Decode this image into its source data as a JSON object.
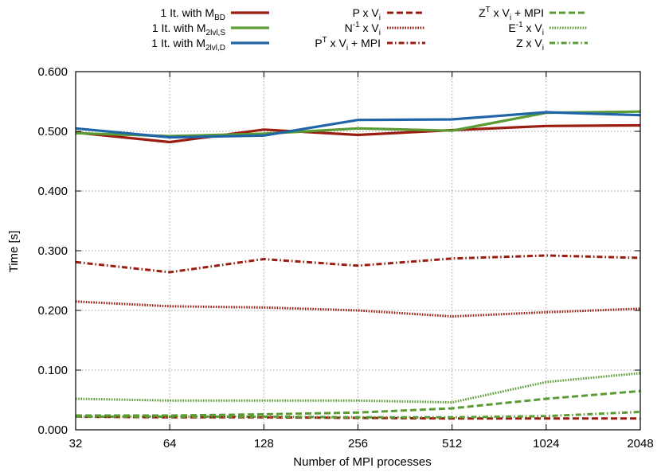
{
  "chart_data": {
    "type": "line",
    "xlabel": "Number of MPI processes",
    "ylabel": "Time [s]",
    "x": [
      "32",
      "64",
      "128",
      "256",
      "512",
      "1024",
      "2048"
    ],
    "ylim": [
      0,
      0.6
    ],
    "yticks": [
      "0.000",
      "0.100",
      "0.200",
      "0.300",
      "0.400",
      "0.500",
      "0.600"
    ],
    "grid": true,
    "legend_position": "top",
    "series": [
      {
        "name": "1 It. with M_BD",
        "label_main": "1 It. with M",
        "label_sub": "BD",
        "label_sup": "",
        "label_tail": "",
        "color": "#9b1d12",
        "style": "solid",
        "values": [
          0.498,
          0.482,
          0.503,
          0.494,
          0.502,
          0.509,
          0.51
        ]
      },
      {
        "name": "1 It. with M_2lvl,S",
        "label_main": "1 It. with M",
        "label_sub": "2lvl,S",
        "label_sup": "",
        "label_tail": "",
        "color": "#5a9b33",
        "style": "solid",
        "values": [
          0.497,
          0.492,
          0.496,
          0.505,
          0.501,
          0.531,
          0.533
        ]
      },
      {
        "name": "1 It. with M_2lvl,D",
        "label_main": "1 It. with M",
        "label_sub": "2lvl,D",
        "label_sup": "",
        "label_tail": "",
        "color": "#1f65a8",
        "style": "solid",
        "values": [
          0.505,
          0.49,
          0.493,
          0.519,
          0.52,
          0.532,
          0.527
        ]
      },
      {
        "name": "P x V_i",
        "label_main": "P x V",
        "label_sub": "i",
        "label_sup": "",
        "label_tail": "",
        "color": "#9b1d12",
        "style": "dashed",
        "values": [
          0.022,
          0.021,
          0.021,
          0.02,
          0.019,
          0.019,
          0.019
        ]
      },
      {
        "name": "N^-1 x V_i",
        "label_main": "N",
        "label_sub": "i",
        "label_sup": "-1",
        "label_tail": " x V",
        "color": "#9b1d12",
        "style": "dotted",
        "values": [
          0.215,
          0.207,
          0.205,
          0.2,
          0.19,
          0.197,
          0.203
        ]
      },
      {
        "name": "P^T x V_i + MPI",
        "label_main": "P",
        "label_sub": "i",
        "label_sup": "T",
        "label_tail": " x V",
        "label_after": " + MPI",
        "color": "#9b1d12",
        "style": "dashdot",
        "values": [
          0.281,
          0.264,
          0.286,
          0.275,
          0.287,
          0.292,
          0.288
        ]
      },
      {
        "name": "Z^T x V_i + MPI",
        "label_main": "Z",
        "label_sub": "i",
        "label_sup": "T",
        "label_tail": " x V",
        "label_after": " + MPI",
        "color": "#5a9b33",
        "style": "dashed",
        "values": [
          0.024,
          0.024,
          0.026,
          0.029,
          0.036,
          0.052,
          0.065
        ]
      },
      {
        "name": "E^-1 x V_i",
        "label_main": "E",
        "label_sub": "i",
        "label_sup": "-1",
        "label_tail": " x V",
        "color": "#5a9b33",
        "style": "dotted",
        "values": [
          0.052,
          0.049,
          0.049,
          0.049,
          0.046,
          0.08,
          0.095
        ]
      },
      {
        "name": "Z x V_i",
        "label_main": "Z x V",
        "label_sub": "i",
        "label_sup": "",
        "label_tail": "",
        "color": "#5a9b33",
        "style": "dashdot",
        "values": [
          0.022,
          0.022,
          0.022,
          0.021,
          0.021,
          0.023,
          0.03
        ]
      }
    ]
  }
}
